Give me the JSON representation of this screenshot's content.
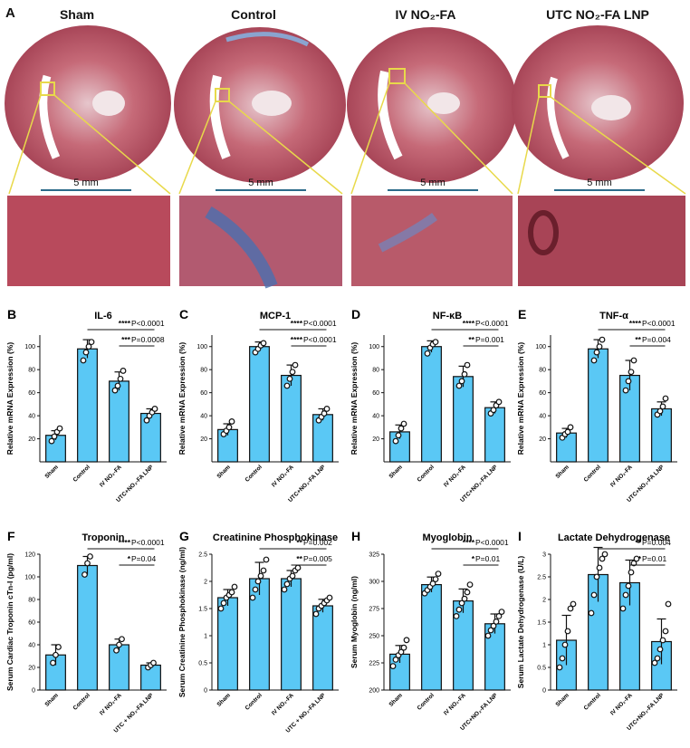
{
  "panel_a": {
    "letter": "A",
    "groups": [
      {
        "title": "Sham",
        "scale": "5 mm"
      },
      {
        "title": "Control",
        "scale": "5 mm"
      },
      {
        "title": "IV NO₂-FA",
        "scale": "5 mm"
      },
      {
        "title": "UTC NO₂-FA LNP",
        "scale": "5 mm"
      }
    ]
  },
  "chart_data": [
    {
      "panel": "B",
      "type": "bar",
      "title": "IL-6",
      "ylabel": "Relative mRNA Expression (%)",
      "categories": [
        "Sham",
        "Control",
        "IV NO₂-FA",
        "UTC+NO₂-FA LNP"
      ],
      "values": [
        23,
        98,
        70,
        42
      ],
      "errors": [
        4,
        8,
        8,
        4
      ],
      "points": [
        [
          18,
          22,
          26,
          29
        ],
        [
          88,
          95,
          100,
          104
        ],
        [
          62,
          66,
          72,
          79
        ],
        [
          36,
          40,
          43,
          46
        ]
      ],
      "ylim": [
        0,
        110
      ],
      "yticks": [
        20,
        40,
        60,
        80,
        100
      ],
      "sig": [
        {
          "stars": "****",
          "text": "P<0.0001",
          "from": 1,
          "to": 3
        },
        {
          "stars": "***",
          "text": "P=0.0008",
          "from": 2,
          "to": 3
        }
      ]
    },
    {
      "panel": "C",
      "type": "bar",
      "title": "MCP-1",
      "ylabel": "Relative mRNA Expression (%)",
      "categories": [
        "Sham",
        "Control",
        "IV NO₂-FA",
        "UTC+NO₂-FA LNP"
      ],
      "values": [
        28,
        100,
        75,
        41
      ],
      "errors": [
        5,
        4,
        9,
        5
      ],
      "points": [
        [
          24,
          27,
          30,
          35
        ],
        [
          95,
          98,
          101,
          103
        ],
        [
          66,
          72,
          78,
          84
        ],
        [
          36,
          39,
          42,
          46
        ]
      ],
      "ylim": [
        0,
        110
      ],
      "yticks": [
        20,
        40,
        60,
        80,
        100
      ],
      "sig": [
        {
          "stars": "****",
          "text": "P<0.0001",
          "from": 1,
          "to": 3
        },
        {
          "stars": "****",
          "text": "P<0.0001",
          "from": 2,
          "to": 3
        }
      ]
    },
    {
      "panel": "D",
      "type": "bar",
      "title": "NF-κB",
      "ylabel": "Relative mRNA Expression (%)",
      "categories": [
        "Sham",
        "Control",
        "IV NO₂-FA",
        "UTC+NO₂-FA LNP"
      ],
      "values": [
        26,
        100,
        74,
        47
      ],
      "errors": [
        6,
        5,
        9,
        5
      ],
      "points": [
        [
          18,
          23,
          29,
          33
        ],
        [
          94,
          99,
          102,
          104
        ],
        [
          66,
          70,
          76,
          84
        ],
        [
          42,
          45,
          49,
          52
        ]
      ],
      "ylim": [
        0,
        110
      ],
      "yticks": [
        20,
        40,
        60,
        80,
        100
      ],
      "sig": [
        {
          "stars": "****",
          "text": "P<0.0001",
          "from": 1,
          "to": 3
        },
        {
          "stars": "**",
          "text": "P=0.001",
          "from": 2,
          "to": 3
        }
      ]
    },
    {
      "panel": "E",
      "type": "bar",
      "title": "TNF-α",
      "ylabel": "Relative mRNA Expression (%)",
      "categories": [
        "Sham",
        "Control",
        "IV NO₂-FA",
        "UTC+NO₂-FA LNP"
      ],
      "values": [
        25,
        98,
        75,
        46
      ],
      "errors": [
        4,
        8,
        13,
        6
      ],
      "points": [
        [
          21,
          24,
          26,
          30
        ],
        [
          88,
          95,
          100,
          106
        ],
        [
          62,
          70,
          78,
          88
        ],
        [
          41,
          44,
          48,
          55
        ]
      ],
      "ylim": [
        0,
        110
      ],
      "yticks": [
        20,
        40,
        60,
        80,
        100
      ],
      "sig": [
        {
          "stars": "****",
          "text": "P<0.0001",
          "from": 1,
          "to": 3
        },
        {
          "stars": "**",
          "text": "P=0.004",
          "from": 2,
          "to": 3
        }
      ]
    },
    {
      "panel": "F",
      "type": "bar",
      "title": "Troponin",
      "ylabel": "Serum Cardiac Troponin cTn-I (pg/ml)",
      "categories": [
        "Sham",
        "Control",
        "IV NO₂-FA",
        "UTC + NO₂-FA LNP"
      ],
      "values": [
        31,
        110,
        40,
        22
      ],
      "errors": [
        9,
        8,
        5,
        2
      ],
      "points": [
        [
          24,
          31,
          38
        ],
        [
          102,
          112,
          118
        ],
        [
          35,
          40,
          45
        ],
        [
          20,
          22,
          24
        ]
      ],
      "ylim": [
        0,
        120
      ],
      "yticks": [
        0,
        20,
        40,
        60,
        80,
        100,
        120
      ],
      "sig": [
        {
          "stars": "****",
          "text": "P<0.0001",
          "from": 1,
          "to": 3
        },
        {
          "stars": "*",
          "text": "P=0.04",
          "from": 2,
          "to": 3
        }
      ]
    },
    {
      "panel": "G",
      "type": "bar",
      "title": "Creatinine Phosphokinase",
      "ylabel": "Serum Creatinine Phosphokinase (ng/ml)",
      "categories": [
        "Sham",
        "Control",
        "IV NO₂-FA",
        "UTC + NO₂-FA LNP"
      ],
      "values": [
        1.7,
        2.05,
        2.05,
        1.55
      ],
      "errors": [
        0.15,
        0.3,
        0.15,
        0.12
      ],
      "points": [
        [
          1.5,
          1.6,
          1.7,
          1.75,
          1.8,
          1.9
        ],
        [
          1.7,
          1.85,
          2.0,
          2.1,
          2.2,
          2.4
        ],
        [
          1.85,
          1.95,
          2.05,
          2.1,
          2.2,
          2.25
        ],
        [
          1.4,
          1.5,
          1.55,
          1.6,
          1.65,
          1.7
        ]
      ],
      "ylim": [
        0,
        2.5
      ],
      "yticks": [
        0.0,
        0.5,
        1.0,
        1.5,
        2.0,
        2.5
      ],
      "sig": [
        {
          "stars": "**",
          "text": "P=0.002",
          "from": 1,
          "to": 3
        },
        {
          "stars": "**",
          "text": "P=0.005",
          "from": 2,
          "to": 3
        }
      ]
    },
    {
      "panel": "H",
      "type": "bar",
      "title": "Myoglobin",
      "ylabel": "Serum Myoglobin (ng/ml)",
      "categories": [
        "Sham",
        "Control",
        "IV NO₂-FA",
        "UTC+NO₂-FA LNP"
      ],
      "values": [
        233,
        297,
        282,
        261
      ],
      "errors": [
        8,
        7,
        11,
        9
      ],
      "points": [
        [
          222,
          228,
          232,
          235,
          239,
          246
        ],
        [
          289,
          292,
          295,
          298,
          302,
          307
        ],
        [
          268,
          274,
          280,
          284,
          290,
          297
        ],
        [
          250,
          255,
          259,
          263,
          268,
          272
        ]
      ],
      "ylim": [
        200,
        325
      ],
      "yticks": [
        200,
        225,
        250,
        275,
        300,
        325
      ],
      "sig": [
        {
          "stars": "****",
          "text": "P<0.0001",
          "from": 1,
          "to": 3
        },
        {
          "stars": "*",
          "text": "P=0.01",
          "from": 2,
          "to": 3
        }
      ]
    },
    {
      "panel": "I",
      "type": "bar",
      "title": "Lactate Dehydrogenase",
      "ylabel": "Serum Lactate Dehydrogenase (U/L)",
      "categories": [
        "Sham",
        "Control",
        "IV NO₂-FA",
        "UTC+NO₂-FA LNP"
      ],
      "values": [
        1.1,
        2.55,
        2.37,
        1.07
      ],
      "errors": [
        0.55,
        0.6,
        0.5,
        0.5
      ],
      "points": [
        [
          0.5,
          0.7,
          1.0,
          1.3,
          1.8,
          1.9
        ],
        [
          1.7,
          2.1,
          2.5,
          2.7,
          2.9,
          3.0
        ],
        [
          1.8,
          2.1,
          2.3,
          2.6,
          2.8,
          2.9
        ],
        [
          0.6,
          0.7,
          0.9,
          1.1,
          1.3,
          1.9
        ]
      ],
      "ylim": [
        0,
        3.0
      ],
      "yticks": [
        0.0,
        0.5,
        1.0,
        1.5,
        2.0,
        2.5,
        3.0
      ],
      "sig": [
        {
          "stars": "**",
          "text": "P=0.004",
          "from": 1,
          "to": 3
        },
        {
          "stars": "*",
          "text": "P=0.01",
          "from": 2,
          "to": 3
        }
      ]
    }
  ],
  "colors": {
    "bar": "#5ac8f5",
    "bar_edge": "#111111",
    "point_edge": "#111111",
    "scalebar": "#2b6b8a",
    "callout": "#e8d94a",
    "tissue_red": "#b04a5a",
    "tissue_pink": "#d07a86",
    "collagen": "#4a6fb0"
  }
}
